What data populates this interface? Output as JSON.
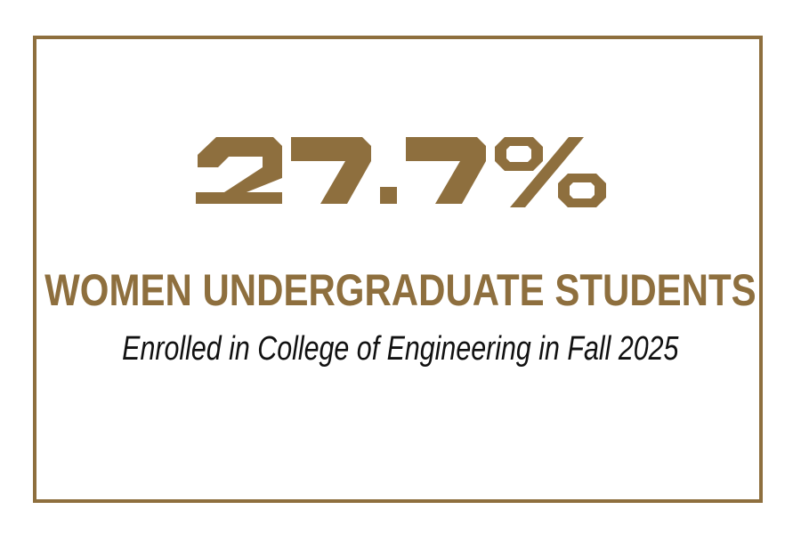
{
  "colors": {
    "gold": "#8E6F3E",
    "text": "#111111",
    "background": "#FFFFFF"
  },
  "stat": {
    "value": "27.7%",
    "label": "WOMEN UNDERGRADUATE STUDENTS",
    "description": "Enrolled in College of Engineering in Fall 2025"
  },
  "chart_data": {
    "type": "table",
    "title": "Women Undergraduate Students",
    "subtitle": "Enrolled in College of Engineering in Fall 2025",
    "categories": [
      "Women undergraduate students"
    ],
    "values": [
      27.7
    ],
    "unit": "%"
  }
}
